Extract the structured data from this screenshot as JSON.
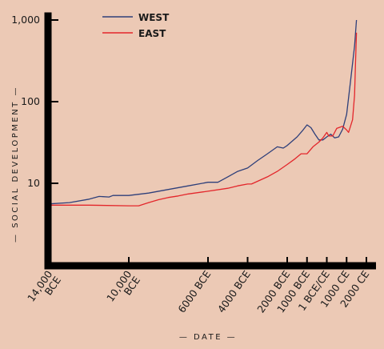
{
  "chart_data": {
    "type": "line",
    "xlabel": "— DATE —",
    "ylabel": "— SOCIAL DEVELOPMENT —",
    "y_scale": "log",
    "ylim": [
      3,
      1000
    ],
    "xlim": [
      -14000,
      2100
    ],
    "y_ticks": [
      {
        "value": 10,
        "label": "10"
      },
      {
        "value": 100,
        "label": "100"
      },
      {
        "value": 1000,
        "label": "1,000"
      }
    ],
    "x_ticks": [
      {
        "value": -14000,
        "label": "14,000 BCE"
      },
      {
        "value": -10000,
        "label": "10,000 BCE"
      },
      {
        "value": -6000,
        "label": "6000 BCE"
      },
      {
        "value": -4000,
        "label": "4000 BCE"
      },
      {
        "value": -2000,
        "label": "2000 BCE"
      },
      {
        "value": -1000,
        "label": "1000 BCE"
      },
      {
        "value": 0,
        "label": "1 BCE/CE"
      },
      {
        "value": 1000,
        "label": "1000 CE"
      },
      {
        "value": 2000,
        "label": "2000 CE"
      }
    ],
    "legend_position": "top-left",
    "series": [
      {
        "name": "WEST",
        "color": "#2e3f7a",
        "points": [
          [
            -14000,
            5.6
          ],
          [
            -13000,
            5.8
          ],
          [
            -12000,
            6.4
          ],
          [
            -11500,
            6.9
          ],
          [
            -11000,
            6.8
          ],
          [
            -10800,
            7.1
          ],
          [
            -10000,
            7.1
          ],
          [
            -9000,
            7.6
          ],
          [
            -8000,
            8.4
          ],
          [
            -7000,
            9.3
          ],
          [
            -6000,
            10.3
          ],
          [
            -5500,
            10.3
          ],
          [
            -5000,
            12
          ],
          [
            -4500,
            14
          ],
          [
            -4000,
            15.4
          ],
          [
            -3500,
            19
          ],
          [
            -3000,
            23
          ],
          [
            -2500,
            28
          ],
          [
            -2200,
            27
          ],
          [
            -2000,
            29
          ],
          [
            -1500,
            37
          ],
          [
            -1200,
            45
          ],
          [
            -1000,
            52
          ],
          [
            -800,
            48
          ],
          [
            -600,
            40
          ],
          [
            -400,
            34
          ],
          [
            -200,
            34
          ],
          [
            0,
            37
          ],
          [
            200,
            40
          ],
          [
            400,
            36
          ],
          [
            600,
            37
          ],
          [
            800,
            46
          ],
          [
            1000,
            70
          ],
          [
            1200,
            180
          ],
          [
            1400,
            480
          ],
          [
            1500,
            1000
          ]
        ]
      },
      {
        "name": "EAST",
        "color": "#e3262b",
        "points": [
          [
            -14000,
            5.4
          ],
          [
            -12000,
            5.4
          ],
          [
            -10000,
            5.3
          ],
          [
            -9500,
            5.3
          ],
          [
            -9000,
            5.8
          ],
          [
            -8500,
            6.3
          ],
          [
            -8000,
            6.7
          ],
          [
            -7500,
            7.0
          ],
          [
            -7000,
            7.4
          ],
          [
            -6000,
            8.0
          ],
          [
            -5000,
            8.7
          ],
          [
            -4500,
            9.3
          ],
          [
            -4000,
            9.8
          ],
          [
            -3800,
            9.8
          ],
          [
            -3000,
            12
          ],
          [
            -2500,
            14
          ],
          [
            -2000,
            17
          ],
          [
            -1600,
            20
          ],
          [
            -1300,
            23
          ],
          [
            -1000,
            23
          ],
          [
            -700,
            28
          ],
          [
            -400,
            32
          ],
          [
            -200,
            36
          ],
          [
            0,
            42
          ],
          [
            100,
            38
          ],
          [
            300,
            38
          ],
          [
            500,
            47
          ],
          [
            700,
            49
          ],
          [
            800,
            50
          ],
          [
            1000,
            45
          ],
          [
            1100,
            42
          ],
          [
            1300,
            60
          ],
          [
            1400,
            120
          ],
          [
            1450,
            300
          ],
          [
            1500,
            700
          ]
        ]
      }
    ]
  }
}
